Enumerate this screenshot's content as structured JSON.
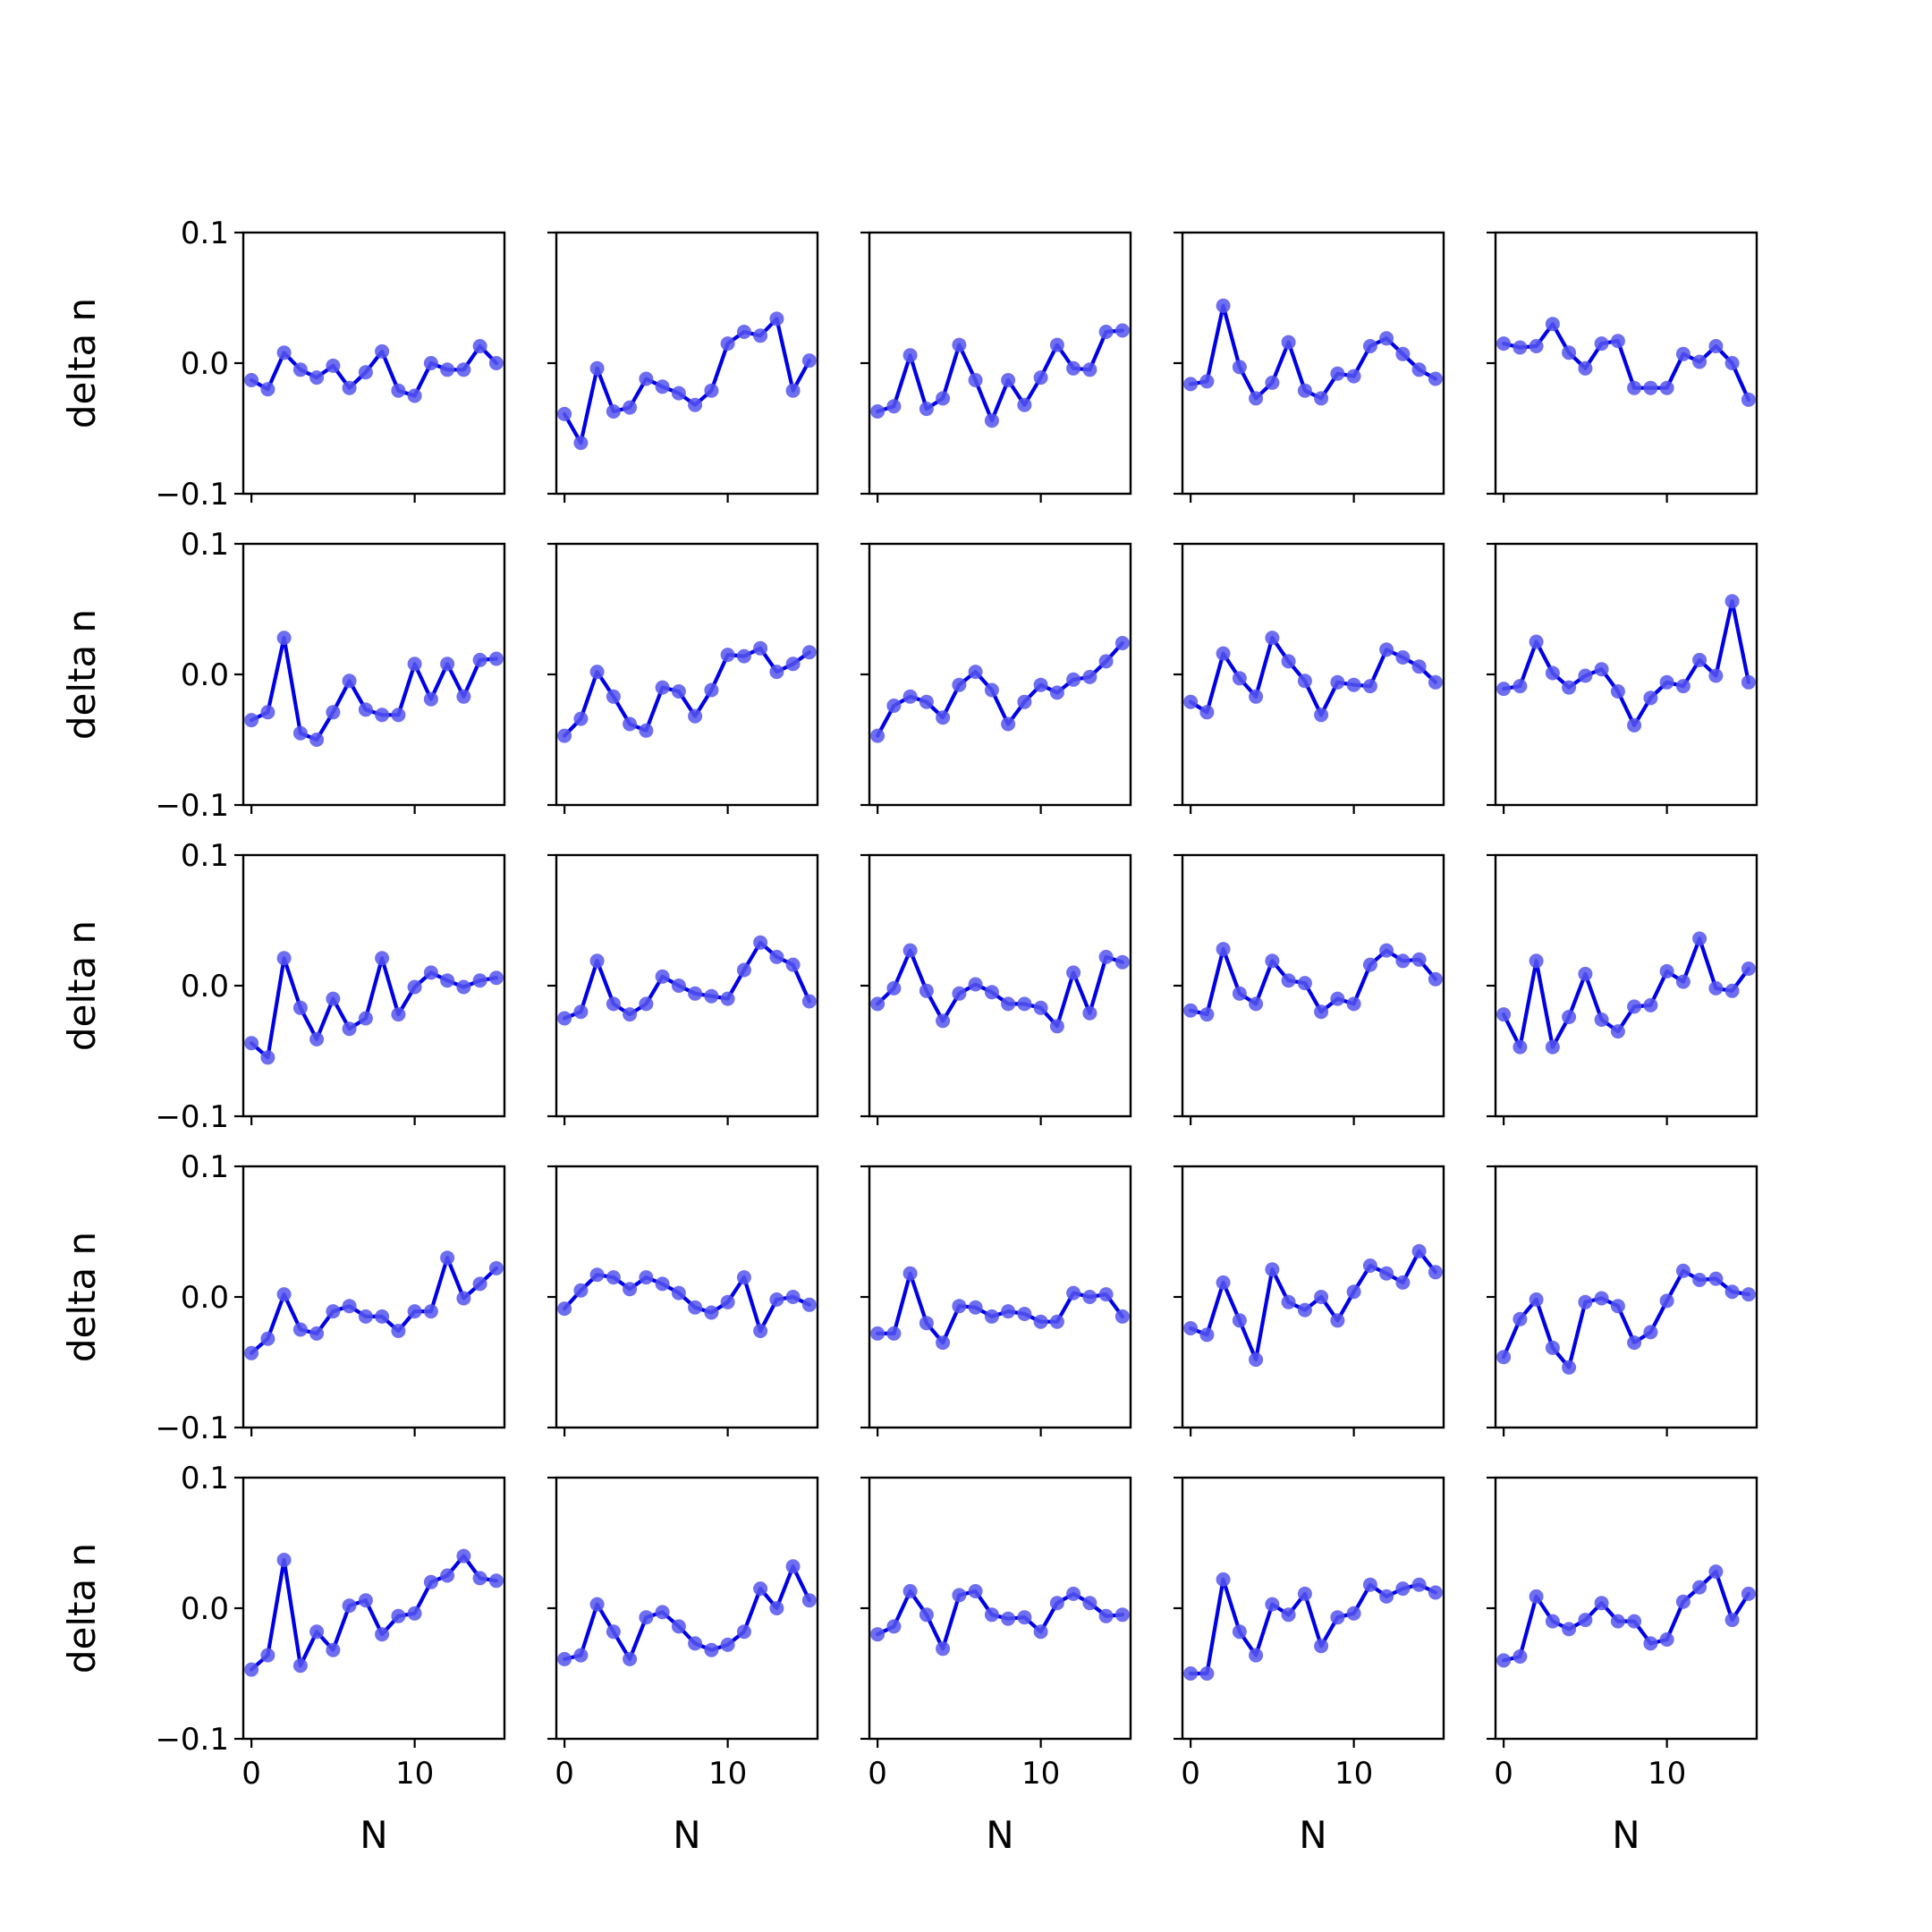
{
  "figure": {
    "rows": 5,
    "cols": 5,
    "line_color": "#0000e6",
    "marker_color": "#5555ee",
    "axis_color": "#000000",
    "xlabel": "N",
    "ylabel": "delta n",
    "x_ticks": [
      0,
      10
    ],
    "x_tick_labels": [
      "0",
      "10"
    ],
    "y_ticks": [
      0.1,
      0.0,
      -0.1
    ],
    "y_tick_labels": [
      "0.1",
      "0.0",
      "−0.1"
    ]
  },
  "chart_data": [
    {
      "type": "line",
      "xlim": [
        -0.5,
        15.5
      ],
      "ylim": [
        -0.1,
        0.1
      ],
      "x": [
        0,
        1,
        2,
        3,
        4,
        5,
        6,
        7,
        8,
        9,
        10,
        11,
        12,
        13,
        14,
        15
      ],
      "values": [
        -0.013,
        -0.02,
        0.008,
        -0.005,
        -0.011,
        -0.002,
        -0.019,
        -0.007,
        0.009,
        -0.021,
        -0.025,
        0.0,
        -0.005,
        -0.005,
        0.013,
        0.0
      ]
    },
    {
      "type": "line",
      "xlim": [
        -0.5,
        15.5
      ],
      "ylim": [
        -0.1,
        0.1
      ],
      "x": [
        0,
        1,
        2,
        3,
        4,
        5,
        6,
        7,
        8,
        9,
        10,
        11,
        12,
        13,
        14,
        15
      ],
      "values": [
        -0.039,
        -0.061,
        -0.004,
        -0.037,
        -0.034,
        -0.012,
        -0.018,
        -0.023,
        -0.032,
        -0.021,
        0.015,
        0.024,
        0.021,
        0.034,
        -0.021,
        0.002
      ]
    },
    {
      "type": "line",
      "xlim": [
        -0.5,
        15.5
      ],
      "ylim": [
        -0.1,
        0.1
      ],
      "x": [
        0,
        1,
        2,
        3,
        4,
        5,
        6,
        7,
        8,
        9,
        10,
        11,
        12,
        13,
        14,
        15
      ],
      "values": [
        -0.037,
        -0.033,
        0.006,
        -0.035,
        -0.027,
        0.014,
        -0.013,
        -0.044,
        -0.013,
        -0.032,
        -0.011,
        0.014,
        -0.004,
        -0.005,
        0.024,
        0.025
      ]
    },
    {
      "type": "line",
      "xlim": [
        -0.5,
        15.5
      ],
      "ylim": [
        -0.1,
        0.1
      ],
      "x": [
        0,
        1,
        2,
        3,
        4,
        5,
        6,
        7,
        8,
        9,
        10,
        11,
        12,
        13,
        14,
        15
      ],
      "values": [
        -0.016,
        -0.014,
        0.044,
        -0.003,
        -0.027,
        -0.015,
        0.016,
        -0.021,
        -0.027,
        -0.008,
        -0.01,
        0.013,
        0.019,
        0.007,
        -0.005,
        -0.012
      ]
    },
    {
      "type": "line",
      "xlim": [
        -0.5,
        15.5
      ],
      "ylim": [
        -0.1,
        0.1
      ],
      "x": [
        0,
        1,
        2,
        3,
        4,
        5,
        6,
        7,
        8,
        9,
        10,
        11,
        12,
        13,
        14,
        15
      ],
      "values": [
        0.015,
        0.012,
        0.013,
        0.03,
        0.008,
        -0.004,
        0.015,
        0.017,
        -0.019,
        -0.019,
        -0.019,
        0.007,
        0.001,
        0.013,
        0.0,
        -0.028
      ]
    },
    {
      "type": "line",
      "xlim": [
        -0.5,
        15.5
      ],
      "ylim": [
        -0.1,
        0.1
      ],
      "x": [
        0,
        1,
        2,
        3,
        4,
        5,
        6,
        7,
        8,
        9,
        10,
        11,
        12,
        13,
        14,
        15
      ],
      "values": [
        -0.035,
        -0.029,
        0.028,
        -0.045,
        -0.05,
        -0.029,
        -0.005,
        -0.027,
        -0.031,
        -0.031,
        0.008,
        -0.019,
        0.008,
        -0.017,
        0.011,
        0.012
      ]
    },
    {
      "type": "line",
      "xlim": [
        -0.5,
        15.5
      ],
      "ylim": [
        -0.1,
        0.1
      ],
      "x": [
        0,
        1,
        2,
        3,
        4,
        5,
        6,
        7,
        8,
        9,
        10,
        11,
        12,
        13,
        14,
        15
      ],
      "values": [
        -0.047,
        -0.034,
        0.002,
        -0.017,
        -0.038,
        -0.043,
        -0.01,
        -0.013,
        -0.032,
        -0.012,
        0.015,
        0.014,
        0.02,
        0.002,
        0.008,
        0.017
      ]
    },
    {
      "type": "line",
      "xlim": [
        -0.5,
        15.5
      ],
      "ylim": [
        -0.1,
        0.1
      ],
      "x": [
        0,
        1,
        2,
        3,
        4,
        5,
        6,
        7,
        8,
        9,
        10,
        11,
        12,
        13,
        14,
        15
      ],
      "values": [
        -0.047,
        -0.024,
        -0.017,
        -0.021,
        -0.033,
        -0.008,
        0.002,
        -0.012,
        -0.038,
        -0.021,
        -0.008,
        -0.014,
        -0.004,
        -0.002,
        0.01,
        0.024
      ]
    },
    {
      "type": "line",
      "xlim": [
        -0.5,
        15.5
      ],
      "ylim": [
        -0.1,
        0.1
      ],
      "x": [
        0,
        1,
        2,
        3,
        4,
        5,
        6,
        7,
        8,
        9,
        10,
        11,
        12,
        13,
        14,
        15
      ],
      "values": [
        -0.021,
        -0.029,
        0.016,
        -0.003,
        -0.017,
        0.028,
        0.01,
        -0.005,
        -0.031,
        -0.006,
        -0.008,
        -0.009,
        0.019,
        0.013,
        0.006,
        -0.006
      ]
    },
    {
      "type": "line",
      "xlim": [
        -0.5,
        15.5
      ],
      "ylim": [
        -0.1,
        0.1
      ],
      "x": [
        0,
        1,
        2,
        3,
        4,
        5,
        6,
        7,
        8,
        9,
        10,
        11,
        12,
        13,
        14,
        15
      ],
      "values": [
        -0.011,
        -0.009,
        0.025,
        0.001,
        -0.01,
        -0.001,
        0.004,
        -0.013,
        -0.039,
        -0.018,
        -0.006,
        -0.009,
        0.011,
        -0.001,
        0.056,
        -0.006
      ]
    },
    {
      "type": "line",
      "xlim": [
        -0.5,
        15.5
      ],
      "ylim": [
        -0.1,
        0.1
      ],
      "x": [
        0,
        1,
        2,
        3,
        4,
        5,
        6,
        7,
        8,
        9,
        10,
        11,
        12,
        13,
        14,
        15
      ],
      "values": [
        -0.044,
        -0.055,
        0.021,
        -0.017,
        -0.041,
        -0.01,
        -0.033,
        -0.025,
        0.021,
        -0.022,
        -0.001,
        0.01,
        0.004,
        -0.001,
        0.004,
        0.006
      ]
    },
    {
      "type": "line",
      "xlim": [
        -0.5,
        15.5
      ],
      "ylim": [
        -0.1,
        0.1
      ],
      "x": [
        0,
        1,
        2,
        3,
        4,
        5,
        6,
        7,
        8,
        9,
        10,
        11,
        12,
        13,
        14,
        15
      ],
      "values": [
        -0.025,
        -0.02,
        0.019,
        -0.014,
        -0.022,
        -0.014,
        0.007,
        0.0,
        -0.006,
        -0.008,
        -0.01,
        0.012,
        0.033,
        0.022,
        0.016,
        -0.012
      ]
    },
    {
      "type": "line",
      "xlim": [
        -0.5,
        15.5
      ],
      "ylim": [
        -0.1,
        0.1
      ],
      "x": [
        0,
        1,
        2,
        3,
        4,
        5,
        6,
        7,
        8,
        9,
        10,
        11,
        12,
        13,
        14,
        15
      ],
      "values": [
        -0.014,
        -0.002,
        0.027,
        -0.004,
        -0.027,
        -0.006,
        0.001,
        -0.005,
        -0.014,
        -0.014,
        -0.017,
        -0.031,
        0.01,
        -0.021,
        0.022,
        0.018
      ]
    },
    {
      "type": "line",
      "xlim": [
        -0.5,
        15.5
      ],
      "ylim": [
        -0.1,
        0.1
      ],
      "x": [
        0,
        1,
        2,
        3,
        4,
        5,
        6,
        7,
        8,
        9,
        10,
        11,
        12,
        13,
        14,
        15
      ],
      "values": [
        -0.019,
        -0.022,
        0.028,
        -0.006,
        -0.014,
        0.019,
        0.004,
        0.002,
        -0.02,
        -0.01,
        -0.014,
        0.016,
        0.027,
        0.019,
        0.02,
        0.005
      ]
    },
    {
      "type": "line",
      "xlim": [
        -0.5,
        15.5
      ],
      "ylim": [
        -0.1,
        0.1
      ],
      "x": [
        0,
        1,
        2,
        3,
        4,
        5,
        6,
        7,
        8,
        9,
        10,
        11,
        12,
        13,
        14,
        15
      ],
      "values": [
        -0.022,
        -0.047,
        0.019,
        -0.047,
        -0.024,
        0.009,
        -0.026,
        -0.035,
        -0.016,
        -0.015,
        0.011,
        0.003,
        0.036,
        -0.002,
        -0.004,
        0.013
      ]
    },
    {
      "type": "line",
      "xlim": [
        -0.5,
        15.5
      ],
      "ylim": [
        -0.1,
        0.1
      ],
      "x": [
        0,
        1,
        2,
        3,
        4,
        5,
        6,
        7,
        8,
        9,
        10,
        11,
        12,
        13,
        14,
        15
      ],
      "values": [
        -0.043,
        -0.032,
        0.002,
        -0.025,
        -0.028,
        -0.011,
        -0.007,
        -0.015,
        -0.015,
        -0.026,
        -0.011,
        -0.011,
        0.03,
        -0.001,
        0.01,
        0.022
      ]
    },
    {
      "type": "line",
      "xlim": [
        -0.5,
        15.5
      ],
      "ylim": [
        -0.1,
        0.1
      ],
      "x": [
        0,
        1,
        2,
        3,
        4,
        5,
        6,
        7,
        8,
        9,
        10,
        11,
        12,
        13,
        14,
        15
      ],
      "values": [
        -0.009,
        0.005,
        0.017,
        0.015,
        0.006,
        0.015,
        0.01,
        0.003,
        -0.008,
        -0.012,
        -0.004,
        0.015,
        -0.026,
        -0.002,
        0.0,
        -0.006
      ]
    },
    {
      "type": "line",
      "xlim": [
        -0.5,
        15.5
      ],
      "ylim": [
        -0.1,
        0.1
      ],
      "x": [
        0,
        1,
        2,
        3,
        4,
        5,
        6,
        7,
        8,
        9,
        10,
        11,
        12,
        13,
        14,
        15
      ],
      "values": [
        -0.028,
        -0.028,
        0.018,
        -0.02,
        -0.035,
        -0.007,
        -0.008,
        -0.015,
        -0.011,
        -0.013,
        -0.019,
        -0.019,
        0.003,
        0.0,
        0.002,
        -0.015
      ]
    },
    {
      "type": "line",
      "xlim": [
        -0.5,
        15.5
      ],
      "ylim": [
        -0.1,
        0.1
      ],
      "x": [
        0,
        1,
        2,
        3,
        4,
        5,
        6,
        7,
        8,
        9,
        10,
        11,
        12,
        13,
        14,
        15
      ],
      "values": [
        -0.024,
        -0.029,
        0.011,
        -0.018,
        -0.048,
        0.021,
        -0.004,
        -0.01,
        0.0,
        -0.018,
        0.004,
        0.024,
        0.018,
        0.011,
        0.035,
        0.019
      ]
    },
    {
      "type": "line",
      "xlim": [
        -0.5,
        15.5
      ],
      "ylim": [
        -0.1,
        0.1
      ],
      "x": [
        0,
        1,
        2,
        3,
        4,
        5,
        6,
        7,
        8,
        9,
        10,
        11,
        12,
        13,
        14,
        15
      ],
      "values": [
        -0.046,
        -0.017,
        -0.002,
        -0.039,
        -0.054,
        -0.004,
        -0.001,
        -0.007,
        -0.035,
        -0.027,
        -0.003,
        0.02,
        0.013,
        0.014,
        0.004,
        0.002
      ]
    },
    {
      "type": "line",
      "xlim": [
        -0.5,
        15.5
      ],
      "ylim": [
        -0.1,
        0.1
      ],
      "x": [
        0,
        1,
        2,
        3,
        4,
        5,
        6,
        7,
        8,
        9,
        10,
        11,
        12,
        13,
        14,
        15
      ],
      "values": [
        -0.047,
        -0.036,
        0.037,
        -0.044,
        -0.018,
        -0.032,
        0.002,
        0.006,
        -0.02,
        -0.006,
        -0.004,
        0.02,
        0.025,
        0.04,
        0.023,
        0.021
      ]
    },
    {
      "type": "line",
      "xlim": [
        -0.5,
        15.5
      ],
      "ylim": [
        -0.1,
        0.1
      ],
      "x": [
        0,
        1,
        2,
        3,
        4,
        5,
        6,
        7,
        8,
        9,
        10,
        11,
        12,
        13,
        14,
        15
      ],
      "values": [
        -0.039,
        -0.036,
        0.003,
        -0.018,
        -0.039,
        -0.007,
        -0.003,
        -0.014,
        -0.027,
        -0.032,
        -0.028,
        -0.018,
        0.015,
        0.0,
        0.032,
        0.006
      ]
    },
    {
      "type": "line",
      "xlim": [
        -0.5,
        15.5
      ],
      "ylim": [
        -0.1,
        0.1
      ],
      "x": [
        0,
        1,
        2,
        3,
        4,
        5,
        6,
        7,
        8,
        9,
        10,
        11,
        12,
        13,
        14,
        15
      ],
      "values": [
        -0.02,
        -0.014,
        0.013,
        -0.005,
        -0.031,
        0.01,
        0.013,
        -0.005,
        -0.008,
        -0.007,
        -0.018,
        0.004,
        0.011,
        0.004,
        -0.006,
        -0.005
      ]
    },
    {
      "type": "line",
      "xlim": [
        -0.5,
        15.5
      ],
      "ylim": [
        -0.1,
        0.1
      ],
      "x": [
        0,
        1,
        2,
        3,
        4,
        5,
        6,
        7,
        8,
        9,
        10,
        11,
        12,
        13,
        14,
        15
      ],
      "values": [
        -0.05,
        -0.05,
        0.022,
        -0.018,
        -0.036,
        0.003,
        -0.005,
        0.011,
        -0.029,
        -0.007,
        -0.004,
        0.018,
        0.009,
        0.015,
        0.018,
        0.012
      ]
    },
    {
      "type": "line",
      "xlim": [
        -0.5,
        15.5
      ],
      "ylim": [
        -0.1,
        0.1
      ],
      "x": [
        0,
        1,
        2,
        3,
        4,
        5,
        6,
        7,
        8,
        9,
        10,
        11,
        12,
        13,
        14,
        15
      ],
      "values": [
        -0.04,
        -0.037,
        0.009,
        -0.01,
        -0.016,
        -0.009,
        0.004,
        -0.01,
        -0.01,
        -0.027,
        -0.024,
        0.005,
        0.016,
        0.028,
        -0.009,
        0.011
      ]
    }
  ]
}
